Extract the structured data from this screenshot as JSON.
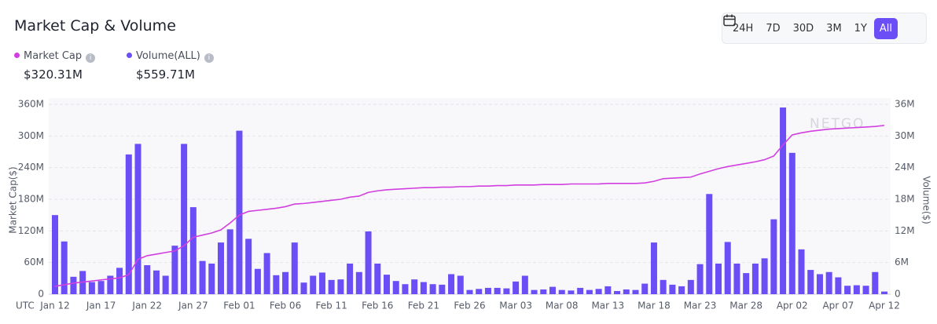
{
  "header": {
    "title": "Market Cap & Volume",
    "ranges": [
      "24H",
      "7D",
      "30D",
      "3M",
      "1Y",
      "All"
    ],
    "active_range": "All"
  },
  "chart_data": {
    "type": "combo",
    "watermark": "NETGO",
    "x_axis_label": "UTC",
    "y_axis_label": "Market Cap($)",
    "y2_axis_label": "Volume($)",
    "categories": [
      "Jan 12",
      null,
      null,
      null,
      null,
      "Jan 17",
      null,
      null,
      null,
      null,
      "Jan 22",
      null,
      null,
      null,
      null,
      "Jan 27",
      null,
      null,
      null,
      null,
      "Feb 01",
      null,
      null,
      null,
      null,
      "Feb 06",
      null,
      null,
      null,
      null,
      "Feb 11",
      null,
      null,
      null,
      null,
      "Feb 16",
      null,
      null,
      null,
      null,
      "Feb 21",
      null,
      null,
      null,
      null,
      "Feb 26",
      null,
      null,
      null,
      null,
      "Mar 03",
      null,
      null,
      null,
      null,
      "Mar 08",
      null,
      null,
      null,
      null,
      "Mar 13",
      null,
      null,
      null,
      null,
      "Mar 18",
      null,
      null,
      null,
      null,
      "Mar 23",
      null,
      null,
      null,
      null,
      "Mar 28",
      null,
      null,
      null,
      null,
      "Apr 02",
      null,
      null,
      null,
      null,
      "Apr 07",
      null,
      null,
      null,
      null,
      "Apr 12"
    ],
    "ylim": [
      0,
      360
    ],
    "yticks": [
      0,
      {
        "value": 60,
        "label": "60M"
      },
      {
        "value": 120,
        "label": "120M"
      },
      {
        "value": 180,
        "label": "180M"
      },
      {
        "value": 240,
        "label": "240M"
      },
      {
        "value": 300,
        "label": "300M"
      },
      {
        "value": 360,
        "label": "360M"
      }
    ],
    "y2lim": [
      0,
      36
    ],
    "y2ticks": [
      0,
      {
        "value": 6,
        "label": "6M"
      },
      {
        "value": 12,
        "label": "12M"
      },
      {
        "value": 18,
        "label": "18M"
      },
      {
        "value": 24,
        "label": "24M"
      },
      {
        "value": 30,
        "label": "30M"
      },
      {
        "value": 36,
        "label": "36M"
      }
    ],
    "grid": true,
    "series": [
      {
        "name": "Market Cap",
        "type": "line",
        "color": "#d23fe0",
        "summary": "$320.31M",
        "values": [
          15,
          18,
          21,
          23,
          25,
          27,
          29,
          31,
          37,
          66,
          73,
          76,
          79,
          82,
          92,
          108,
          112,
          116,
          122,
          135,
          150,
          157,
          159,
          161,
          163,
          166,
          171,
          172,
          174,
          176,
          178,
          180,
          184,
          186,
          193,
          196,
          198,
          199,
          200,
          201,
          202,
          202,
          203,
          203,
          204,
          204,
          205,
          205,
          206,
          206,
          207,
          207,
          207,
          208,
          208,
          208,
          209,
          209,
          209,
          209,
          210,
          210,
          210,
          210,
          211,
          214,
          219,
          220,
          221,
          222,
          228,
          233,
          238,
          242,
          245,
          248,
          251,
          255,
          262,
          283,
          302,
          306,
          309,
          311,
          313,
          314,
          315,
          316,
          317,
          318,
          320
        ]
      },
      {
        "name": "Volume(ALL)",
        "type": "bar",
        "axis": "y2",
        "color": "#6b4ef6",
        "summary": "$559.71M",
        "values": [
          15,
          10,
          3.3,
          4.4,
          2.3,
          2.5,
          3.5,
          5,
          26.5,
          28.5,
          5.5,
          4.5,
          3.5,
          9.2,
          28.5,
          16.5,
          6.3,
          5.8,
          9.8,
          12.3,
          31,
          10.5,
          4.8,
          7.8,
          3.6,
          4.2,
          9.8,
          2.2,
          3.5,
          4.1,
          2.7,
          2.8,
          5.8,
          4.2,
          11.9,
          5.8,
          3.7,
          2.5,
          1.9,
          2.8,
          2.3,
          1.9,
          1.8,
          3.8,
          3.5,
          0.8,
          1,
          1.2,
          1.2,
          1.1,
          2.4,
          3.5,
          0.8,
          0.9,
          1.4,
          0.8,
          0.7,
          1.2,
          0.8,
          1,
          1.5,
          0.6,
          0.9,
          0.8,
          2,
          9.8,
          2.7,
          1.8,
          1.5,
          2.7,
          5.7,
          19,
          5.8,
          9.9,
          5.8,
          4,
          5.8,
          6.8,
          14.2,
          35.4,
          26.8,
          8.5,
          4.6,
          3.8,
          4.2,
          3.2,
          1.6,
          1.7,
          1.6,
          4.2,
          0.5
        ]
      }
    ]
  }
}
